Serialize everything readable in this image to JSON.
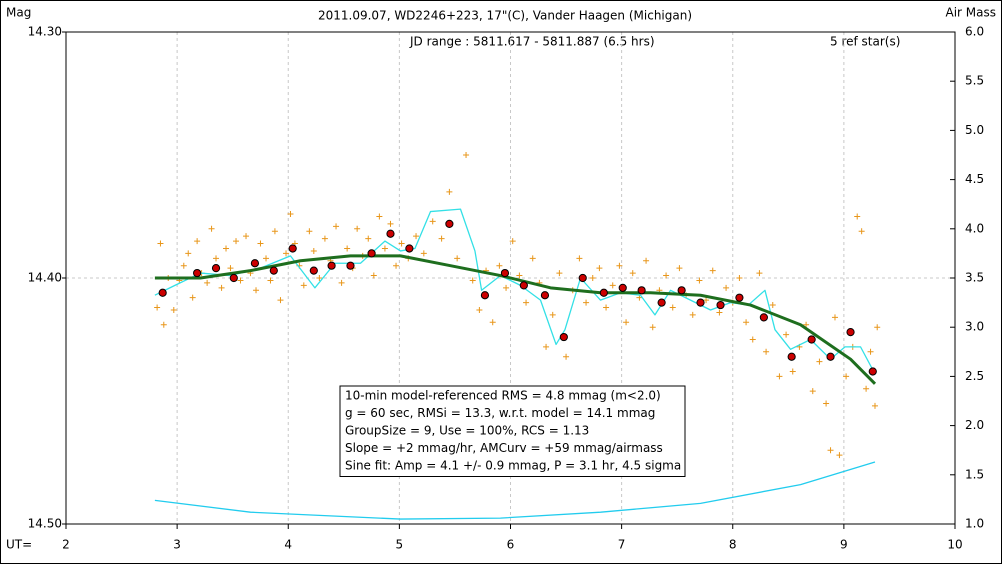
{
  "chart_data": {
    "type": "scatter",
    "title": "2011.09.07, WD2246+223, 17\"(C), Vander Haagen (Michigan)",
    "subtitle": "JD range : 5811.617 - 5811.887 (6.5 hrs)",
    "ref_note": "5 ref star(s)",
    "ylabel": "Mag",
    "y2label": "Air Mass",
    "xlabel": "UT=",
    "xlim": [
      2,
      10
    ],
    "xticks": [
      2,
      3,
      4,
      5,
      6,
      7,
      8,
      9,
      10
    ],
    "ylim": [
      14.3,
      14.5
    ],
    "y_inverted": true,
    "yticks": [
      {
        "value": 14.3,
        "label": "14.30"
      },
      {
        "value": 14.4,
        "label": "14.40"
      },
      {
        "value": 14.5,
        "label": "14.50"
      }
    ],
    "y2lim": [
      1.0,
      6.0
    ],
    "y2ticks": [
      {
        "value": 1,
        "label": "1.0"
      },
      1.5,
      {
        "value": 2,
        "label": "2.0"
      },
      2.5,
      {
        "value": 3,
        "label": "3.0"
      },
      3.5,
      {
        "value": 4,
        "label": "4.0"
      },
      4.5,
      {
        "value": 5,
        "label": "5.0"
      },
      5.5,
      {
        "value": 6,
        "label": "6.0"
      }
    ],
    "grid": true,
    "annotations": [
      "10-min model-referenced RMS = 4.8 mmag (m<2.0)",
      "g = 60 sec, RMSi = 13.3, w.r.t. model = 14.1 mmag",
      "GroupSize = 9, Use = 100%, RCS = 1.13",
      "Slope = +2 mmag/hr, AMCurv = +59 mmag/airmass",
      "Sine fit: Amp = 4.1 +/- 0.9 mmag, P = 3.1 hr, 4.5 sigma"
    ],
    "series": [
      {
        "style": "plus",
        "color": "#e8961a",
        "x": [
          2.82,
          2.85,
          2.88,
          2.92,
          2.97,
          3.02,
          3.06,
          3.1,
          3.14,
          3.18,
          3.22,
          3.27,
          3.31,
          3.35,
          3.4,
          3.44,
          3.48,
          3.53,
          3.57,
          3.62,
          3.66,
          3.71,
          3.75,
          3.8,
          3.84,
          3.88,
          3.93,
          3.98,
          4.02,
          4.06,
          4.1,
          4.14,
          4.19,
          4.23,
          4.28,
          4.33,
          4.38,
          4.43,
          4.48,
          4.53,
          4.58,
          4.62,
          4.67,
          4.72,
          4.77,
          4.82,
          4.87,
          4.92,
          4.97,
          5.02,
          5.08,
          5.15,
          5.22,
          5.3,
          5.38,
          5.45,
          5.52,
          5.6,
          5.66,
          5.72,
          5.78,
          5.84,
          5.9,
          5.96,
          6.02,
          6.08,
          6.14,
          6.2,
          6.26,
          6.32,
          6.38,
          6.44,
          6.5,
          6.56,
          6.62,
          6.68,
          6.74,
          6.8,
          6.86,
          6.92,
          6.98,
          7.04,
          7.1,
          7.16,
          7.22,
          7.28,
          7.34,
          7.4,
          7.46,
          7.52,
          7.58,
          7.64,
          7.7,
          7.76,
          7.82,
          7.88,
          7.94,
          8.0,
          8.06,
          8.12,
          8.18,
          8.24,
          8.3,
          8.36,
          8.42,
          8.48,
          8.54,
          8.6,
          8.66,
          8.72,
          8.78,
          8.84,
          8.88,
          8.92,
          8.96,
          9.02,
          9.08,
          9.12,
          9.16,
          9.2,
          9.24,
          9.28,
          9.3
        ],
        "values": [
          14.412,
          14.386,
          14.419,
          14.4,
          14.413,
          14.401,
          14.395,
          14.39,
          14.408,
          14.385,
          14.398,
          14.402,
          14.38,
          14.392,
          14.404,
          14.388,
          14.396,
          14.385,
          14.401,
          14.383,
          14.398,
          14.405,
          14.386,
          14.392,
          14.401,
          14.381,
          14.409,
          14.39,
          14.374,
          14.386,
          14.395,
          14.403,
          14.381,
          14.389,
          14.4,
          14.384,
          14.393,
          14.379,
          14.402,
          14.388,
          14.396,
          14.38,
          14.391,
          14.384,
          14.399,
          14.375,
          14.388,
          14.378,
          14.395,
          14.386,
          14.392,
          14.383,
          14.39,
          14.377,
          14.384,
          14.365,
          14.392,
          14.35,
          14.401,
          14.413,
          14.397,
          14.418,
          14.395,
          14.404,
          14.385,
          14.399,
          14.41,
          14.392,
          14.402,
          14.428,
          14.415,
          14.398,
          14.432,
          14.405,
          14.392,
          14.41,
          14.4,
          14.396,
          14.412,
          14.403,
          14.395,
          14.418,
          14.398,
          14.408,
          14.393,
          14.42,
          14.405,
          14.399,
          14.412,
          14.396,
          14.407,
          14.415,
          14.401,
          14.409,
          14.397,
          14.414,
          14.404,
          14.41,
          14.4,
          14.418,
          14.425,
          14.398,
          14.43,
          14.411,
          14.44,
          14.423,
          14.438,
          14.428,
          14.419,
          14.446,
          14.434,
          14.451,
          14.47,
          14.416,
          14.472,
          14.44,
          14.428,
          14.375,
          14.381,
          14.445,
          14.43,
          14.452,
          14.42
        ]
      },
      {
        "style": "line",
        "color": "#33e0e6",
        "x": [
          2.8,
          2.98,
          3.21,
          3.48,
          3.75,
          4.02,
          4.24,
          4.42,
          4.65,
          4.87,
          5.01,
          5.14,
          5.28,
          5.55,
          5.68,
          5.74,
          5.91,
          6.09,
          6.27,
          6.41,
          6.49,
          6.63,
          6.81,
          6.99,
          7.17,
          7.3,
          7.44,
          7.62,
          7.8,
          7.98,
          8.14,
          8.29,
          8.38,
          8.52,
          8.7,
          8.88,
          9.01,
          9.15,
          9.28
        ],
        "values": [
          14.407,
          14.403,
          14.398,
          14.399,
          14.396,
          14.391,
          14.404,
          14.394,
          14.394,
          14.385,
          14.389,
          14.388,
          14.373,
          14.372,
          14.389,
          14.405,
          14.399,
          14.403,
          14.409,
          14.427,
          14.421,
          14.4,
          14.409,
          14.406,
          14.407,
          14.415,
          14.405,
          14.409,
          14.413,
          14.41,
          14.411,
          14.405,
          14.421,
          14.429,
          14.425,
          14.433,
          14.428,
          14.428,
          14.439
        ]
      },
      {
        "style": "line",
        "color": "#1e6e1e",
        "width": 3,
        "x": [
          2.8,
          3.21,
          3.66,
          4.11,
          4.56,
          5.01,
          5.46,
          5.91,
          6.36,
          6.81,
          7.26,
          7.71,
          8.16,
          8.61,
          9.06,
          9.28
        ],
        "values": [
          14.4,
          14.4,
          14.397,
          14.393,
          14.391,
          14.391,
          14.395,
          14.399,
          14.404,
          14.406,
          14.406,
          14.407,
          14.411,
          14.419,
          14.433,
          14.443
        ]
      },
      {
        "style": "circle",
        "color": "#cc0000",
        "x": [
          2.87,
          3.18,
          3.35,
          3.51,
          3.7,
          3.87,
          4.04,
          4.23,
          4.39,
          4.56,
          4.75,
          4.92,
          5.09,
          5.45,
          5.77,
          5.95,
          6.12,
          6.31,
          6.48,
          6.65,
          6.84,
          7.01,
          7.18,
          7.36,
          7.54,
          7.71,
          7.89,
          8.06,
          8.28,
          8.53,
          8.71,
          8.88,
          9.06,
          9.26
        ],
        "values": [
          14.406,
          14.398,
          14.396,
          14.4,
          14.394,
          14.397,
          14.388,
          14.397,
          14.395,
          14.395,
          14.39,
          14.382,
          14.388,
          14.378,
          14.407,
          14.398,
          14.403,
          14.407,
          14.424,
          14.4,
          14.406,
          14.404,
          14.405,
          14.41,
          14.405,
          14.41,
          14.411,
          14.408,
          14.416,
          14.432,
          14.425,
          14.432,
          14.422,
          14.438
        ]
      },
      {
        "style": "line",
        "color": "#22ccee",
        "axis": "y2",
        "x": [
          2.8,
          3.66,
          5.01,
          5.91,
          6.81,
          7.71,
          8.61,
          9.28
        ],
        "values": [
          1.24,
          1.12,
          1.05,
          1.06,
          1.12,
          1.21,
          1.4,
          1.63
        ]
      }
    ]
  }
}
